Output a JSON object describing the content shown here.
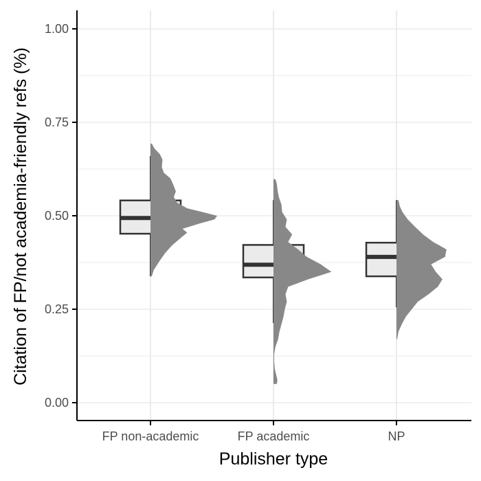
{
  "chart_data": {
    "type": "raincloud",
    "title": "",
    "xlabel": "Publisher type",
    "ylabel": "Citation of FP/not academia-friendly refs (%)",
    "categories": [
      "FP non-academic",
      "FP academic",
      "NP"
    ],
    "ylim": [
      0.0,
      1.05
    ],
    "y_ticks": [
      0.0,
      0.25,
      0.5,
      0.75,
      1.0
    ],
    "y_tick_labels": [
      "0.00",
      "0.25",
      "0.50",
      "0.75",
      "1.00"
    ],
    "grid": "vertical-and-horizontal",
    "boxes": [
      {
        "category": "FP non-academic",
        "q1": 0.452,
        "median": 0.494,
        "q3": 0.541,
        "whisker_low": 0.338,
        "whisker_high": 0.66
      },
      {
        "category": "FP academic",
        "q1": 0.335,
        "median": 0.369,
        "q3": 0.422,
        "whisker_low": 0.213,
        "whisker_high": 0.542
      },
      {
        "category": "NP",
        "q1": 0.338,
        "median": 0.39,
        "q3": 0.428,
        "whisker_low": 0.255,
        "whisker_high": 0.542
      }
    ],
    "densities": [
      {
        "category": "FP non-academic",
        "y": [
          0.338,
          0.355,
          0.38,
          0.4,
          0.42,
          0.44,
          0.455,
          0.465,
          0.48,
          0.49,
          0.5,
          0.51,
          0.52,
          0.535,
          0.55,
          0.565,
          0.58,
          0.6,
          0.615,
          0.63,
          0.65,
          0.665,
          0.68,
          0.693
        ],
        "width": [
          0.02,
          0.05,
          0.14,
          0.22,
          0.32,
          0.45,
          0.55,
          0.48,
          0.75,
          0.96,
          1.0,
          0.78,
          0.55,
          0.4,
          0.35,
          0.38,
          0.35,
          0.3,
          0.2,
          0.17,
          0.18,
          0.14,
          0.06,
          0.02
        ]
      },
      {
        "category": "FP academic",
        "y": [
          0.05,
          0.06,
          0.075,
          0.09,
          0.11,
          0.13,
          0.15,
          0.17,
          0.19,
          0.21,
          0.23,
          0.25,
          0.27,
          0.29,
          0.31,
          0.33,
          0.35,
          0.37,
          0.39,
          0.41,
          0.43,
          0.45,
          0.47,
          0.49,
          0.51,
          0.53,
          0.55,
          0.57,
          0.585,
          0.598
        ],
        "width": [
          0.05,
          0.06,
          0.04,
          0.02,
          0.01,
          0.01,
          0.03,
          0.07,
          0.09,
          0.12,
          0.15,
          0.17,
          0.2,
          0.18,
          0.22,
          0.52,
          0.87,
          0.71,
          0.5,
          0.37,
          0.22,
          0.28,
          0.18,
          0.2,
          0.13,
          0.12,
          0.08,
          0.06,
          0.05,
          0.03
        ]
      },
      {
        "category": "NP",
        "y": [
          0.17,
          0.19,
          0.21,
          0.23,
          0.25,
          0.27,
          0.29,
          0.31,
          0.33,
          0.35,
          0.37,
          0.39,
          0.41,
          0.43,
          0.45,
          0.47,
          0.49,
          0.51,
          0.525,
          0.542
        ],
        "width": [
          0.01,
          0.03,
          0.08,
          0.14,
          0.23,
          0.32,
          0.48,
          0.62,
          0.69,
          0.59,
          0.52,
          0.73,
          0.75,
          0.55,
          0.4,
          0.28,
          0.17,
          0.09,
          0.05,
          0.03
        ]
      }
    ],
    "colors": {
      "box_fill": "#ebebeb",
      "box_stroke": "#333333",
      "density_fill": "#888888",
      "grid": "#ebebeb",
      "axis": "#000000"
    }
  }
}
